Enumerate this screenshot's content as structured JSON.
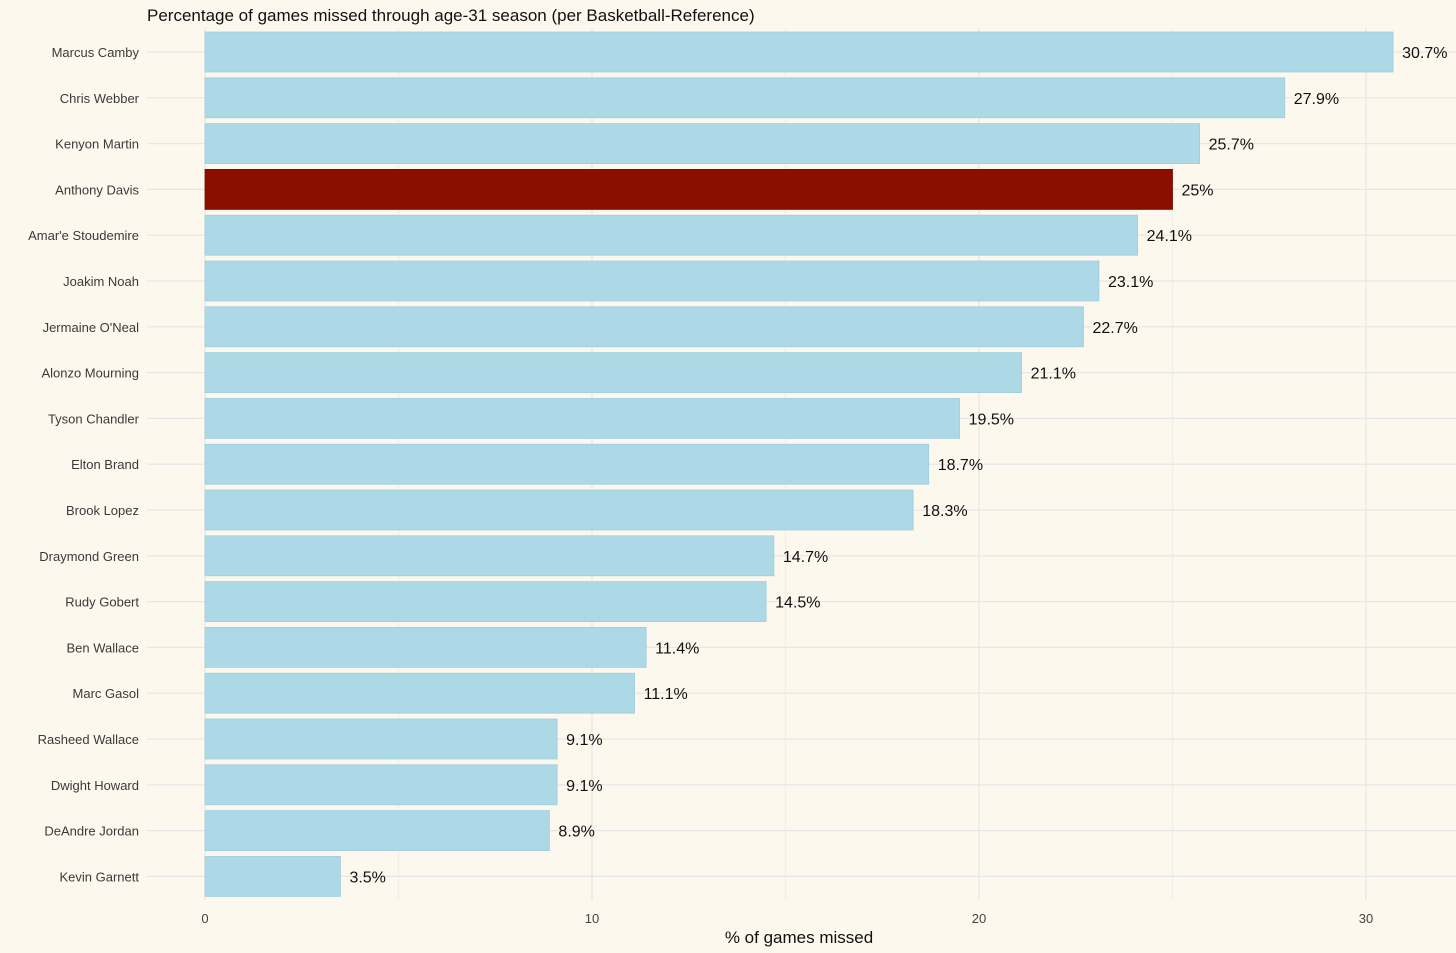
{
  "chart_data": {
    "type": "bar",
    "orientation": "horizontal",
    "title": "Percentage of games missed through age-31 season (per Basketball-Reference)",
    "xlabel": "% of games missed",
    "ylabel": "",
    "xlim": [
      0,
      32
    ],
    "x_ticks": [
      0,
      10,
      20,
      30
    ],
    "grid": true,
    "legend": "none",
    "colors": {
      "default": "#add8e6",
      "highlight": "#8b0e00",
      "background": "#fdf8ee",
      "grid": "#e6e6e6"
    },
    "categories": [
      "Marcus Camby",
      "Chris Webber",
      "Kenyon Martin",
      "Anthony Davis",
      "Amar'e Stoudemire",
      "Joakim Noah",
      "Jermaine O'Neal",
      "Alonzo Mourning",
      "Tyson Chandler",
      "Elton Brand",
      "Brook Lopez",
      "Draymond Green",
      "Rudy Gobert",
      "Ben Wallace",
      "Marc Gasol",
      "Rasheed Wallace",
      "Dwight Howard",
      "DeAndre Jordan",
      "Kevin Garnett"
    ],
    "values": [
      30.7,
      27.9,
      25.7,
      25,
      24.1,
      23.1,
      22.7,
      21.1,
      19.5,
      18.7,
      18.3,
      14.7,
      14.5,
      11.4,
      11.1,
      9.1,
      9.1,
      8.9,
      3.5
    ],
    "value_labels": [
      "30.7%",
      "27.9%",
      "25.7%",
      "25%",
      "24.1%",
      "23.1%",
      "22.7%",
      "21.1%",
      "19.5%",
      "18.7%",
      "18.3%",
      "14.7%",
      "14.5%",
      "11.4%",
      "11.1%",
      "9.1%",
      "9.1%",
      "8.9%",
      "3.5%"
    ],
    "highlighted": "Anthony Davis"
  }
}
